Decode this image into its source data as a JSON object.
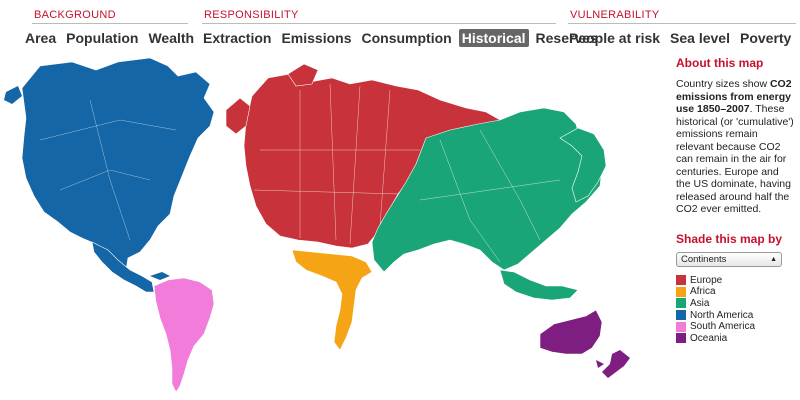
{
  "nav": {
    "background": {
      "heading": "BACKGROUND",
      "icon": "globe-icon",
      "items": [
        "Area",
        "Population",
        "Wealth"
      ]
    },
    "responsibility": {
      "heading": "RESPONSIBILITY",
      "items": [
        "Extraction",
        "Emissions",
        "Consumption",
        "Historical",
        "Reserves"
      ],
      "active": "Historical"
    },
    "vulnerability": {
      "heading": "VULNERABILITY",
      "items": [
        "People at risk",
        "Sea level",
        "Poverty"
      ]
    }
  },
  "sidebar": {
    "about_title": "About this map",
    "about_text_prefix": "Country sizes show ",
    "about_text_bold": "CO2 emissions from energy use 1850–2007",
    "about_text_suffix": ". These historical (or 'cumulative') emissions remain relevant because CO2 can remain in the air for centuries. Europe and the US dominate, having released around half the CO2 ever emitted.",
    "shade_title": "Shade this map by",
    "shade_selected": "Continents"
  },
  "legend": [
    {
      "label": "Europe",
      "color": "#c8323a"
    },
    {
      "label": "Africa",
      "color": "#f5a416"
    },
    {
      "label": "Asia",
      "color": "#1aa579"
    },
    {
      "label": "North America",
      "color": "#1566a6"
    },
    {
      "label": "South America",
      "color": "#f17cd9"
    },
    {
      "label": "Oceania",
      "color": "#7e1e81"
    }
  ]
}
